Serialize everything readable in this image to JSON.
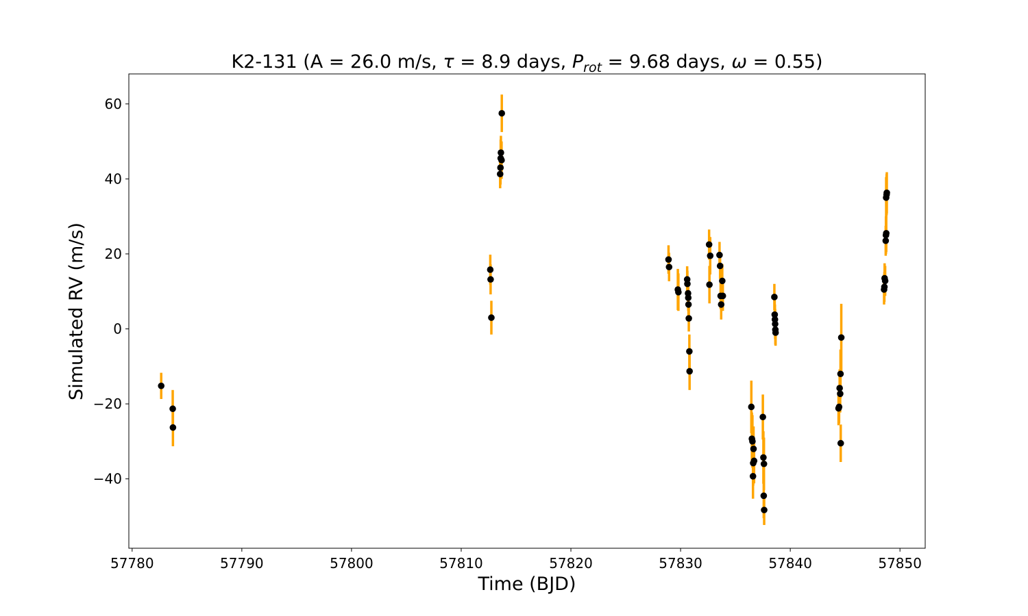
{
  "chart_data": {
    "type": "scatter",
    "title": {
      "prefix": "K2-131 (A = 26.0 m/s, ",
      "tau_symbol": "τ",
      "tau_text": " = 8.9 days, ",
      "prot_base": "P",
      "prot_sub": "rot",
      "prot_text": " = 9.68 days, ",
      "omega_symbol": "ω",
      "suffix": " = 0.55)"
    },
    "xlabel": "Time (BJD)",
    "ylabel": "Simulated RV (m/s)",
    "xlim": [
      57779.7,
      57852.3
    ],
    "ylim": [
      -58.5,
      68.0
    ],
    "xticks": [
      57780,
      57790,
      57800,
      57810,
      57820,
      57830,
      57840,
      57850
    ],
    "xtick_labels": [
      "57780",
      "57790",
      "57800",
      "57810",
      "57820",
      "57830",
      "57840",
      "57850"
    ],
    "yticks": [
      -40,
      -20,
      0,
      20,
      40,
      60
    ],
    "ytick_labels": [
      "−40",
      "−20",
      "0",
      "20",
      "40",
      "60"
    ],
    "grid": false,
    "marker_color": "#000000",
    "errorbar_color": "#ffa500",
    "points": [
      {
        "x": 57782.65,
        "y": -15.2,
        "err": 3.5
      },
      {
        "x": 57783.7,
        "y": -21.3,
        "err": 5.0
      },
      {
        "x": 57783.72,
        "y": -26.3,
        "err": 5.0
      },
      {
        "x": 57812.65,
        "y": 15.8,
        "err": 4.0
      },
      {
        "x": 57812.68,
        "y": 13.2,
        "err": 4.0
      },
      {
        "x": 57812.75,
        "y": 3.0,
        "err": 4.5
      },
      {
        "x": 57813.55,
        "y": 41.3,
        "err": 3.8
      },
      {
        "x": 57813.58,
        "y": 43.0,
        "err": 4.5
      },
      {
        "x": 57813.6,
        "y": 45.5,
        "err": 5.0
      },
      {
        "x": 57813.62,
        "y": 47.0,
        "err": 4.5
      },
      {
        "x": 57813.68,
        "y": 45.0,
        "err": 5.0
      },
      {
        "x": 57813.7,
        "y": 57.5,
        "err": 5.0
      },
      {
        "x": 57828.9,
        "y": 18.5,
        "err": 3.8
      },
      {
        "x": 57828.95,
        "y": 16.5,
        "err": 3.8
      },
      {
        "x": 57829.75,
        "y": 10.5,
        "err": 5.5
      },
      {
        "x": 57829.8,
        "y": 9.8,
        "err": 5.0
      },
      {
        "x": 57830.6,
        "y": 13.2,
        "err": 3.5
      },
      {
        "x": 57830.62,
        "y": 12.0,
        "err": 3.5
      },
      {
        "x": 57830.68,
        "y": 9.5,
        "err": 3.5
      },
      {
        "x": 57830.7,
        "y": 8.3,
        "err": 3.5
      },
      {
        "x": 57830.72,
        "y": 6.5,
        "err": 3.5
      },
      {
        "x": 57830.75,
        "y": 2.8,
        "err": 3.5
      },
      {
        "x": 57830.8,
        "y": -6.0,
        "err": 4.5
      },
      {
        "x": 57830.82,
        "y": -11.3,
        "err": 5.0
      },
      {
        "x": 57832.6,
        "y": 22.5,
        "err": 4.0
      },
      {
        "x": 57832.63,
        "y": 11.8,
        "err": 5.0
      },
      {
        "x": 57832.7,
        "y": 19.5,
        "err": 5.0
      },
      {
        "x": 57833.55,
        "y": 19.7,
        "err": 3.5
      },
      {
        "x": 57833.6,
        "y": 16.8,
        "err": 3.5
      },
      {
        "x": 57833.65,
        "y": 8.8,
        "err": 3.5
      },
      {
        "x": 57833.7,
        "y": 6.5,
        "err": 4.0
      },
      {
        "x": 57833.8,
        "y": 12.8,
        "err": 4.5
      },
      {
        "x": 57833.85,
        "y": 8.8,
        "err": 4.0
      },
      {
        "x": 57836.45,
        "y": -20.8,
        "err": 7.0
      },
      {
        "x": 57836.5,
        "y": -29.3,
        "err": 7.0
      },
      {
        "x": 57836.55,
        "y": -30.0,
        "err": 7.0
      },
      {
        "x": 57836.6,
        "y": -39.3,
        "err": 6.0
      },
      {
        "x": 57836.62,
        "y": -35.8,
        "err": 6.0
      },
      {
        "x": 57836.65,
        "y": -32.0,
        "err": 6.0
      },
      {
        "x": 57836.7,
        "y": -35.2,
        "err": 6.0
      },
      {
        "x": 57837.5,
        "y": -23.5,
        "err": 6.0
      },
      {
        "x": 57837.55,
        "y": -34.3,
        "err": 7.0
      },
      {
        "x": 57837.6,
        "y": -36.0,
        "err": 7.0
      },
      {
        "x": 57837.58,
        "y": -44.5,
        "err": 6.0
      },
      {
        "x": 57837.62,
        "y": -48.3,
        "err": 4.0
      },
      {
        "x": 57838.55,
        "y": 8.5,
        "err": 3.5
      },
      {
        "x": 57838.58,
        "y": 3.8,
        "err": 4.0
      },
      {
        "x": 57838.6,
        "y": 2.5,
        "err": 4.0
      },
      {
        "x": 57838.62,
        "y": 1.3,
        "err": 4.0
      },
      {
        "x": 57838.64,
        "y": -0.2,
        "err": 4.0
      },
      {
        "x": 57838.66,
        "y": -1.0,
        "err": 3.5
      },
      {
        "x": 57844.4,
        "y": -21.2,
        "err": 4.5
      },
      {
        "x": 57844.45,
        "y": -20.8,
        "err": 4.5
      },
      {
        "x": 57844.5,
        "y": -15.8,
        "err": 5.0
      },
      {
        "x": 57844.55,
        "y": -17.3,
        "err": 5.0
      },
      {
        "x": 57844.58,
        "y": -12.0,
        "err": 6.5
      },
      {
        "x": 57844.6,
        "y": -30.5,
        "err": 5.0
      },
      {
        "x": 57844.65,
        "y": -2.3,
        "err": 9.0
      },
      {
        "x": 57848.55,
        "y": 10.5,
        "err": 4.0
      },
      {
        "x": 57848.58,
        "y": 11.2,
        "err": 4.0
      },
      {
        "x": 57848.6,
        "y": 13.5,
        "err": 4.0
      },
      {
        "x": 57848.65,
        "y": 12.8,
        "err": 4.0
      },
      {
        "x": 57848.7,
        "y": 23.5,
        "err": 4.0
      },
      {
        "x": 57848.72,
        "y": 25.0,
        "err": 5.0
      },
      {
        "x": 57848.75,
        "y": 25.5,
        "err": 5.0
      },
      {
        "x": 57848.74,
        "y": 35.0,
        "err": 5.5
      },
      {
        "x": 57848.78,
        "y": 35.8,
        "err": 5.5
      },
      {
        "x": 57848.8,
        "y": 36.3,
        "err": 5.5
      }
    ]
  }
}
